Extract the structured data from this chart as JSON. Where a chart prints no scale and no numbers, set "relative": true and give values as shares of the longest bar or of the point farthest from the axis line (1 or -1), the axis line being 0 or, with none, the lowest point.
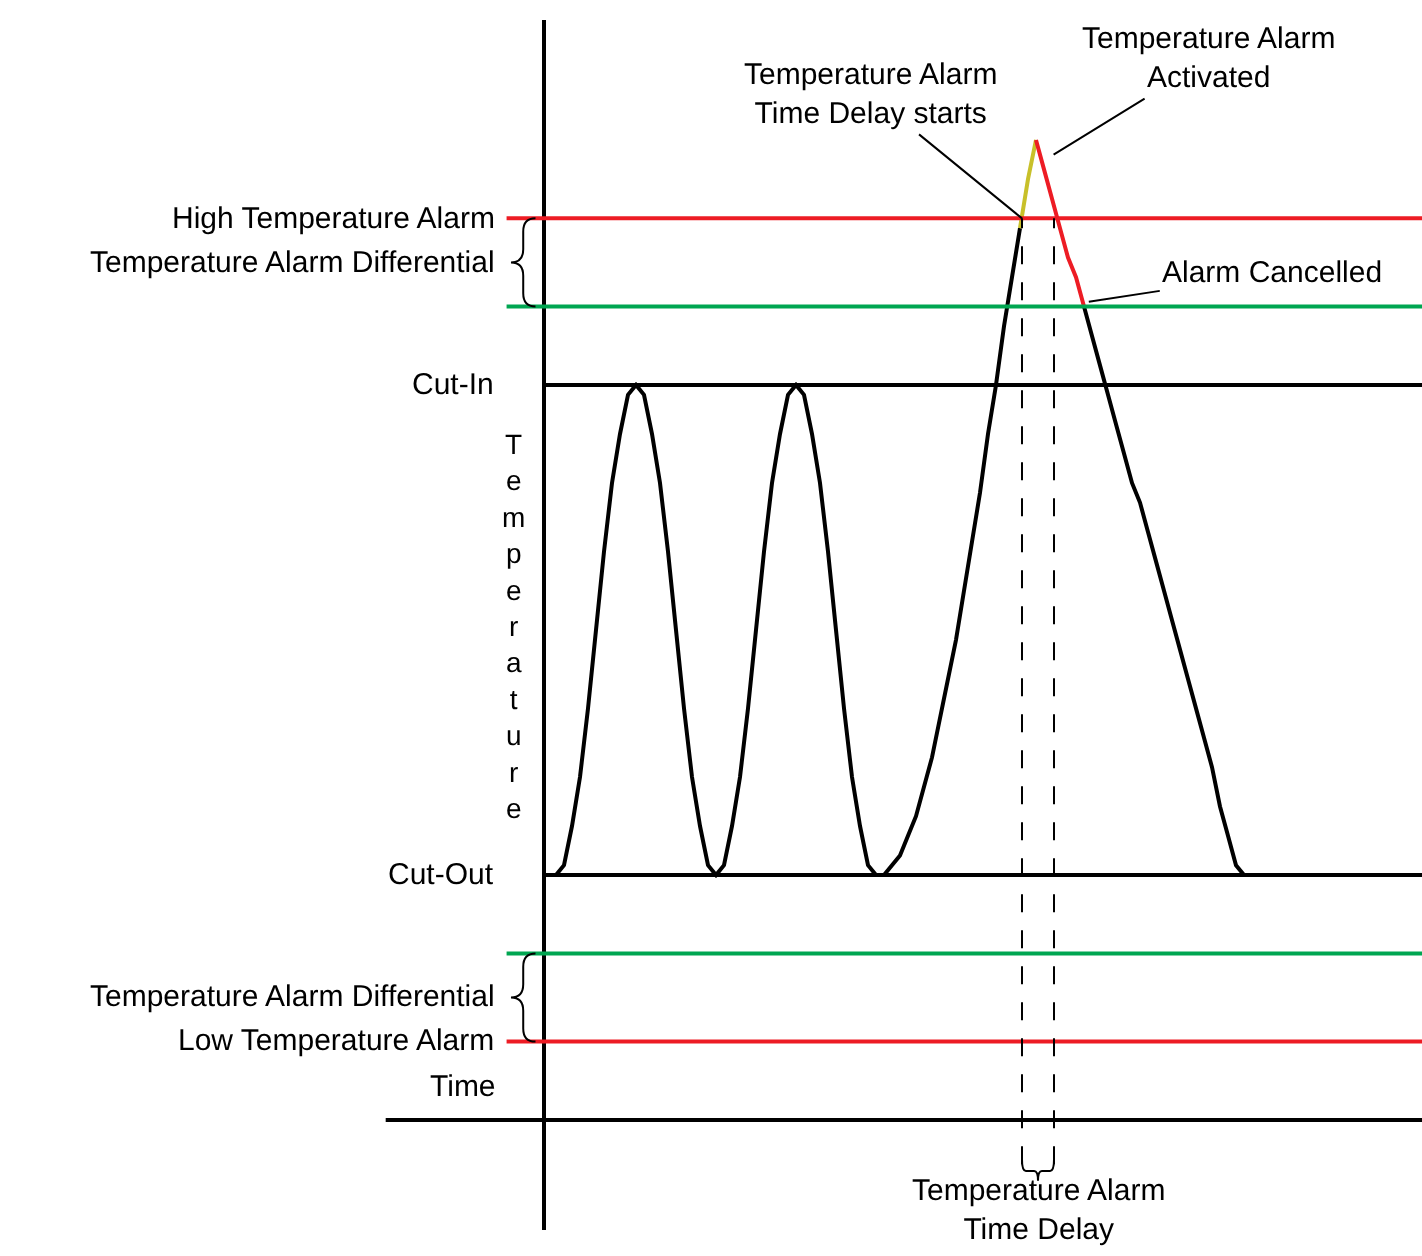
{
  "chart_data": {
    "type": "line",
    "relative": true,
    "xlabel": "Time",
    "ylabel": "Temperature",
    "categories": [
      null,
      null,
      null,
      null,
      null,
      null,
      null,
      null,
      null,
      null,
      null,
      null,
      null,
      null,
      null,
      null,
      null,
      null,
      null,
      null,
      null,
      null,
      null,
      null,
      null,
      null,
      null,
      null,
      null,
      null,
      null,
      null,
      null,
      null,
      null,
      null,
      null,
      null,
      null,
      null,
      null,
      null,
      null,
      null,
      null,
      null,
      null,
      null,
      null,
      null,
      null,
      null,
      null,
      null,
      null,
      null,
      null,
      null,
      null,
      null,
      null,
      null,
      null,
      null,
      null,
      null,
      null,
      null,
      null,
      null,
      null,
      null,
      null,
      null,
      null,
      null,
      null,
      null,
      null,
      null,
      null,
      null,
      null,
      null,
      null,
      null,
      null
    ],
    "series": [
      {
        "color": "#000000",
        "values": [
          0.25,
          0.26,
          0.3,
          0.35,
          0.42,
          0.5,
          0.58,
          0.65,
          0.7,
          0.74,
          0.75,
          0.74,
          0.7,
          0.65,
          0.58,
          0.5,
          0.42,
          0.35,
          0.3,
          0.26,
          0.25,
          0.26,
          0.3,
          0.35,
          0.42,
          0.5,
          0.58,
          0.65,
          0.7,
          0.74,
          0.75,
          0.74,
          0.7,
          0.65,
          0.58,
          0.5,
          0.42,
          0.35,
          0.3,
          0.26,
          0.25,
          0.25,
          0.26,
          0.27,
          0.29,
          0.31,
          0.34,
          0.37,
          0.41,
          0.45,
          0.49,
          0.54,
          0.59,
          0.64,
          0.7,
          0.75,
          0.81,
          0.86,
          0.91,
          null,
          null,
          null,
          null,
          null,
          null,
          null,
          0.83,
          0.8,
          0.77,
          0.74,
          0.71,
          0.68,
          0.65,
          0.63,
          0.6,
          0.57,
          0.54,
          0.51,
          0.48,
          0.45,
          0.42,
          0.39,
          0.36,
          0.32,
          0.29,
          0.26,
          0.25
        ]
      },
      {
        "color": "#c8c02a",
        "values": [
          null,
          null,
          null,
          null,
          null,
          null,
          null,
          null,
          null,
          null,
          null,
          null,
          null,
          null,
          null,
          null,
          null,
          null,
          null,
          null,
          null,
          null,
          null,
          null,
          null,
          null,
          null,
          null,
          null,
          null,
          null,
          null,
          null,
          null,
          null,
          null,
          null,
          null,
          null,
          null,
          null,
          null,
          null,
          null,
          null,
          null,
          null,
          null,
          null,
          null,
          null,
          null,
          null,
          null,
          null,
          null,
          null,
          null,
          0.91,
          0.96,
          1.0,
          null,
          null,
          null,
          null,
          null,
          null,
          null,
          null,
          null,
          null,
          null,
          null,
          null,
          null,
          null,
          null,
          null,
          null,
          null,
          null,
          null,
          null,
          null,
          null,
          null,
          null
        ]
      },
      {
        "color": "#ed1c24",
        "values": [
          null,
          null,
          null,
          null,
          null,
          null,
          null,
          null,
          null,
          null,
          null,
          null,
          null,
          null,
          null,
          null,
          null,
          null,
          null,
          null,
          null,
          null,
          null,
          null,
          null,
          null,
          null,
          null,
          null,
          null,
          null,
          null,
          null,
          null,
          null,
          null,
          null,
          null,
          null,
          null,
          null,
          null,
          null,
          null,
          null,
          null,
          null,
          null,
          null,
          null,
          null,
          null,
          null,
          null,
          null,
          null,
          null,
          null,
          null,
          null,
          1.0,
          0.97,
          0.94,
          0.91,
          0.88,
          0.86,
          0.83,
          null,
          null,
          null,
          null,
          null,
          null,
          null,
          null,
          null,
          null,
          null,
          null,
          null,
          null,
          null,
          null,
          null,
          null,
          null,
          null
        ]
      }
    ],
    "ref_lines": [
      {
        "axis": "y",
        "value": 0.92,
        "label": "High Temperature Alarm",
        "color": "#ed1c24"
      },
      {
        "axis": "y",
        "value": 0.83,
        "color": "#00a651"
      },
      {
        "axis": "y",
        "value": 0.75,
        "label": "Cut-In"
      },
      {
        "axis": "y",
        "value": 0.25,
        "label": "Cut-Out"
      },
      {
        "axis": "y",
        "value": 0.17,
        "color": "#00a651"
      },
      {
        "axis": "y",
        "value": 0.08,
        "label": "Low Temperature Alarm",
        "color": "#ed1c24"
      }
    ],
    "annotations": [
      "Temperature Alarm Differential",
      "Temperature Alarm Differential",
      "Temperature Alarm\nTime Delay starts",
      "Temperature Alarm\nActivated",
      "Alarm Cancelled",
      "Temperature Alarm\nTime Delay"
    ]
  }
}
